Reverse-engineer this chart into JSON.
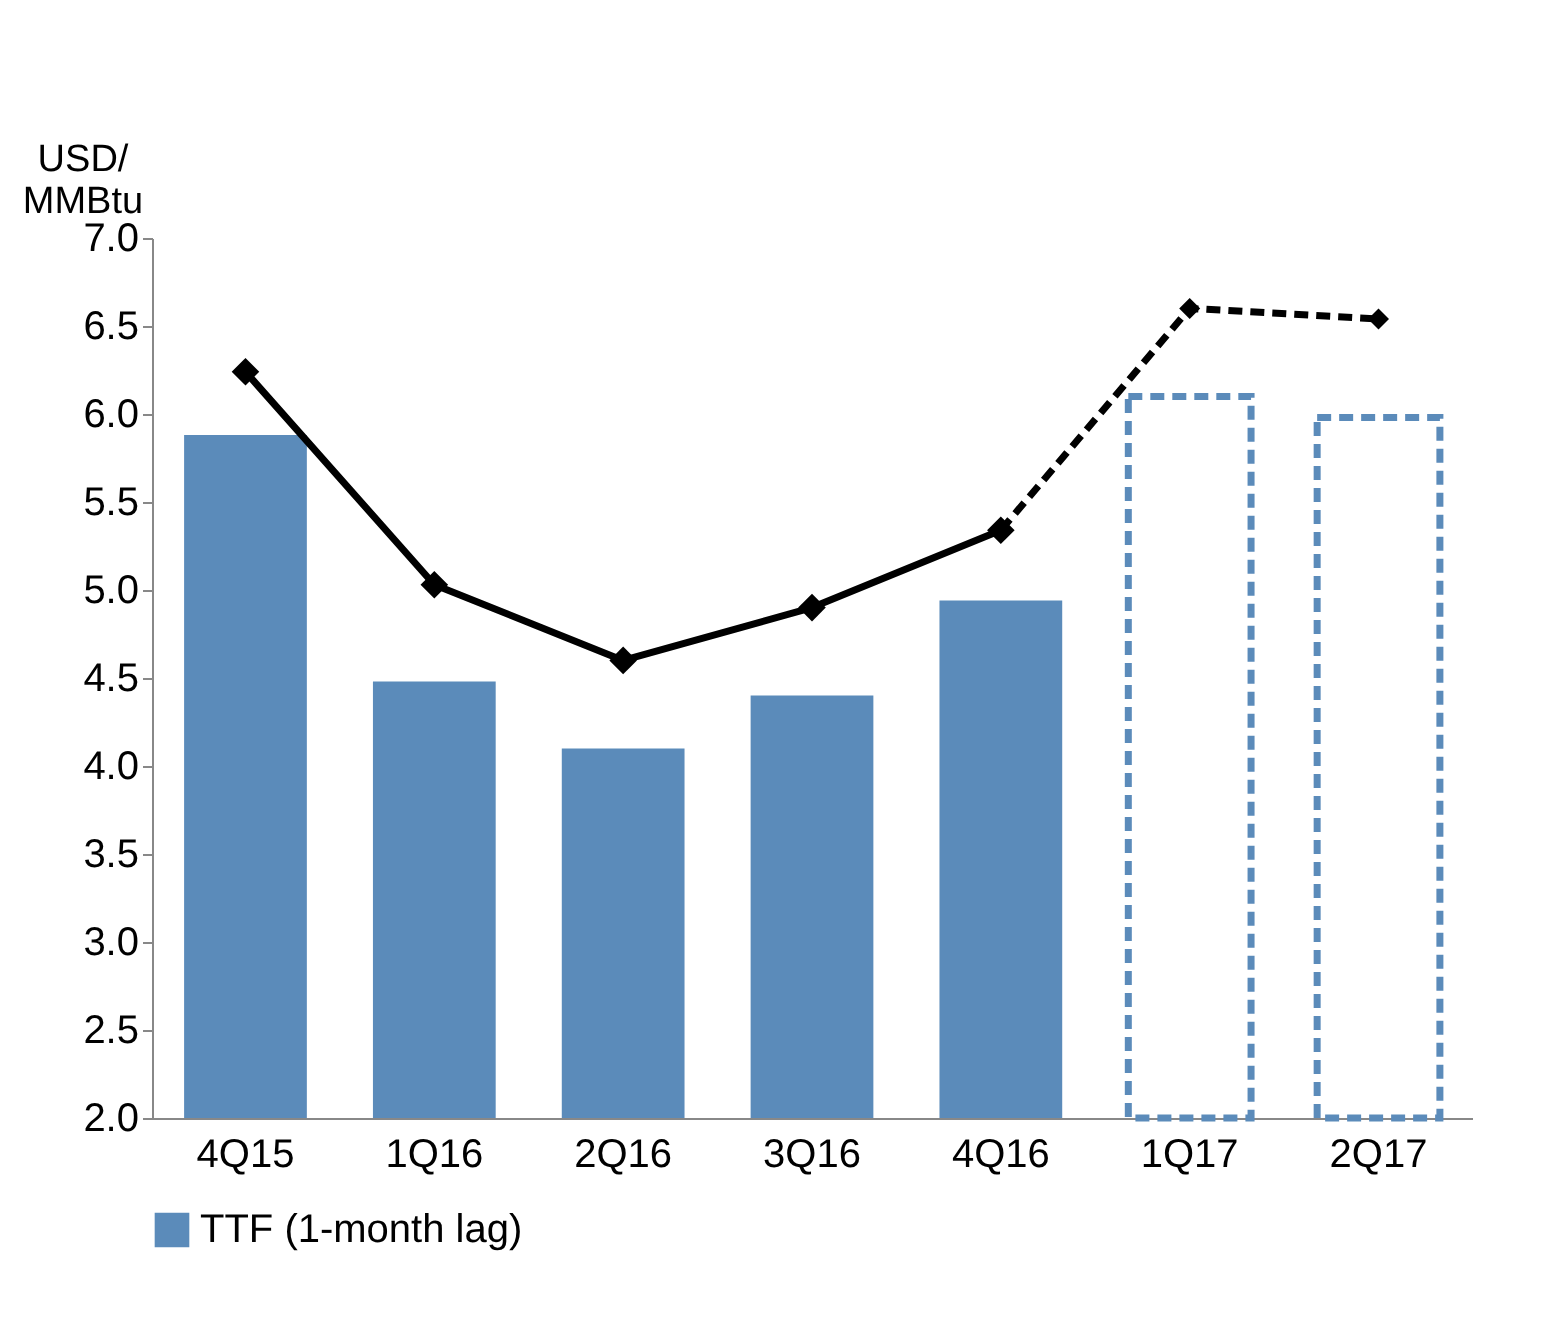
{
  "chart_data": {
    "type": "bar",
    "ylabel": "USD/\nMMBtu",
    "categories": [
      "4Q15",
      "1Q16",
      "2Q16",
      "3Q16",
      "4Q16",
      "1Q17",
      "2Q17"
    ],
    "series": [
      {
        "name": "TTF (1-month lag)",
        "color": "#5b8bba",
        "values": [
          5.88,
          4.48,
          4.1,
          4.4,
          4.94,
          null,
          null
        ]
      },
      {
        "color": "#5b8bba",
        "line_style": "dashed",
        "values": [
          null,
          null,
          null,
          null,
          null,
          6.1,
          5.98
        ]
      },
      {
        "type": "line",
        "color": "#000000",
        "line_style": "solid",
        "values": [
          6.24,
          5.03,
          4.6,
          4.9,
          5.34,
          null,
          null
        ]
      },
      {
        "type": "line",
        "color": "#000000",
        "line_style": "dashed",
        "values": [
          null,
          null,
          null,
          null,
          5.34,
          6.6,
          6.54
        ]
      }
    ],
    "ylim": [
      2.0,
      7.0
    ],
    "yticks": [
      {
        "value": 2,
        "label": "2.0"
      },
      {
        "value": 2.5,
        "label": "2.5"
      },
      {
        "value": 3,
        "label": "3.0"
      },
      {
        "value": 3.5,
        "label": "3.5"
      },
      {
        "value": 4,
        "label": "4.0"
      },
      {
        "value": 4.5,
        "label": "4.5"
      },
      {
        "value": 5,
        "label": "5.0"
      },
      {
        "value": 5.5,
        "label": "5.5"
      },
      {
        "value": 6,
        "label": "6.0"
      },
      {
        "value": 6.5,
        "label": "6.5"
      },
      {
        "value": 7,
        "label": "7.0"
      }
    ],
    "grid": false,
    "legend": "bottom",
    "marker": "diamond"
  }
}
